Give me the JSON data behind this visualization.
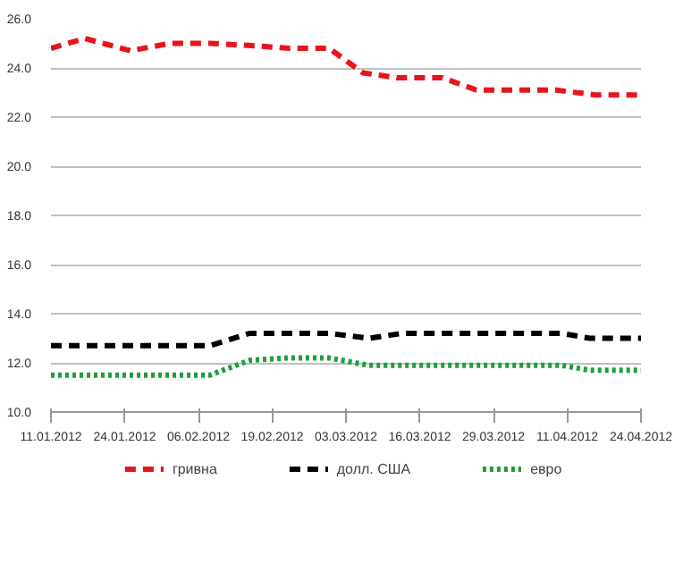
{
  "chart_data": {
    "type": "line",
    "grid": "y",
    "legend": "bottom",
    "marker": "none",
    "xlim": [
      "2012-01-11",
      "2012-04-24"
    ],
    "xticks": [
      {
        "value": "2012-01-11",
        "label": "11.01.2012"
      },
      {
        "value": "2012-01-24",
        "label": "24.01.2012"
      },
      {
        "value": "2012-02-06",
        "label": "06.02.2012"
      },
      {
        "value": "2012-02-19",
        "label": "19.02.2012"
      },
      {
        "value": "2012-03-03",
        "label": "03.03.2012"
      },
      {
        "value": "2012-03-16",
        "label": "16.03.2012"
      },
      {
        "value": "2012-03-29",
        "label": "29.03.2012"
      },
      {
        "value": "2012-04-11",
        "label": "11.04.2012"
      },
      {
        "value": "2012-04-24",
        "label": "24.04.2012"
      }
    ],
    "ylim": [
      10,
      26
    ],
    "yticks": [
      {
        "value": 10,
        "label": "10.0"
      },
      {
        "value": 12,
        "label": "12.0"
      },
      {
        "value": 14,
        "label": "14.0"
      },
      {
        "value": 16,
        "label": "16.0"
      },
      {
        "value": 18,
        "label": "18.0"
      },
      {
        "value": 20,
        "label": "20.0"
      },
      {
        "value": 22,
        "label": "22.0"
      },
      {
        "value": 24,
        "label": "24.0"
      },
      {
        "value": 26,
        "label": "26.0"
      }
    ],
    "series": [
      {
        "name": "гривна",
        "color": "#e8141c",
        "line_style": "dashed",
        "x": [
          "2012-01-11",
          "2012-01-17",
          "2012-01-25",
          "2012-02-01",
          "2012-02-08",
          "2012-02-16",
          "2012-02-22",
          "2012-02-29",
          "2012-03-06",
          "2012-03-12",
          "2012-03-20",
          "2012-03-26",
          "2012-04-01",
          "2012-04-09",
          "2012-04-16",
          "2012-04-24"
        ],
        "values": [
          24.8,
          25.2,
          24.7,
          25.0,
          25.0,
          24.9,
          24.8,
          24.8,
          23.8,
          23.6,
          23.6,
          23.1,
          23.1,
          23.1,
          22.9,
          22.9
        ]
      },
      {
        "name": "долл. США",
        "color": "#000000",
        "line_style": "dashed",
        "x": [
          "2012-01-11",
          "2012-02-08",
          "2012-02-15",
          "2012-02-29",
          "2012-03-07",
          "2012-03-13",
          "2012-04-10",
          "2012-04-15",
          "2012-04-24"
        ],
        "values": [
          12.7,
          12.7,
          13.2,
          13.2,
          13.0,
          13.2,
          13.2,
          13.0,
          13.0
        ]
      },
      {
        "name": "евро",
        "color": "#1e9e3c",
        "line_style": "dotted",
        "x": [
          "2012-01-11",
          "2012-02-08",
          "2012-02-15",
          "2012-02-22",
          "2012-02-29",
          "2012-03-07",
          "2012-04-10",
          "2012-04-15",
          "2012-04-24"
        ],
        "values": [
          11.5,
          11.5,
          12.1,
          12.2,
          12.2,
          11.9,
          11.9,
          11.7,
          11.7
        ]
      }
    ]
  }
}
